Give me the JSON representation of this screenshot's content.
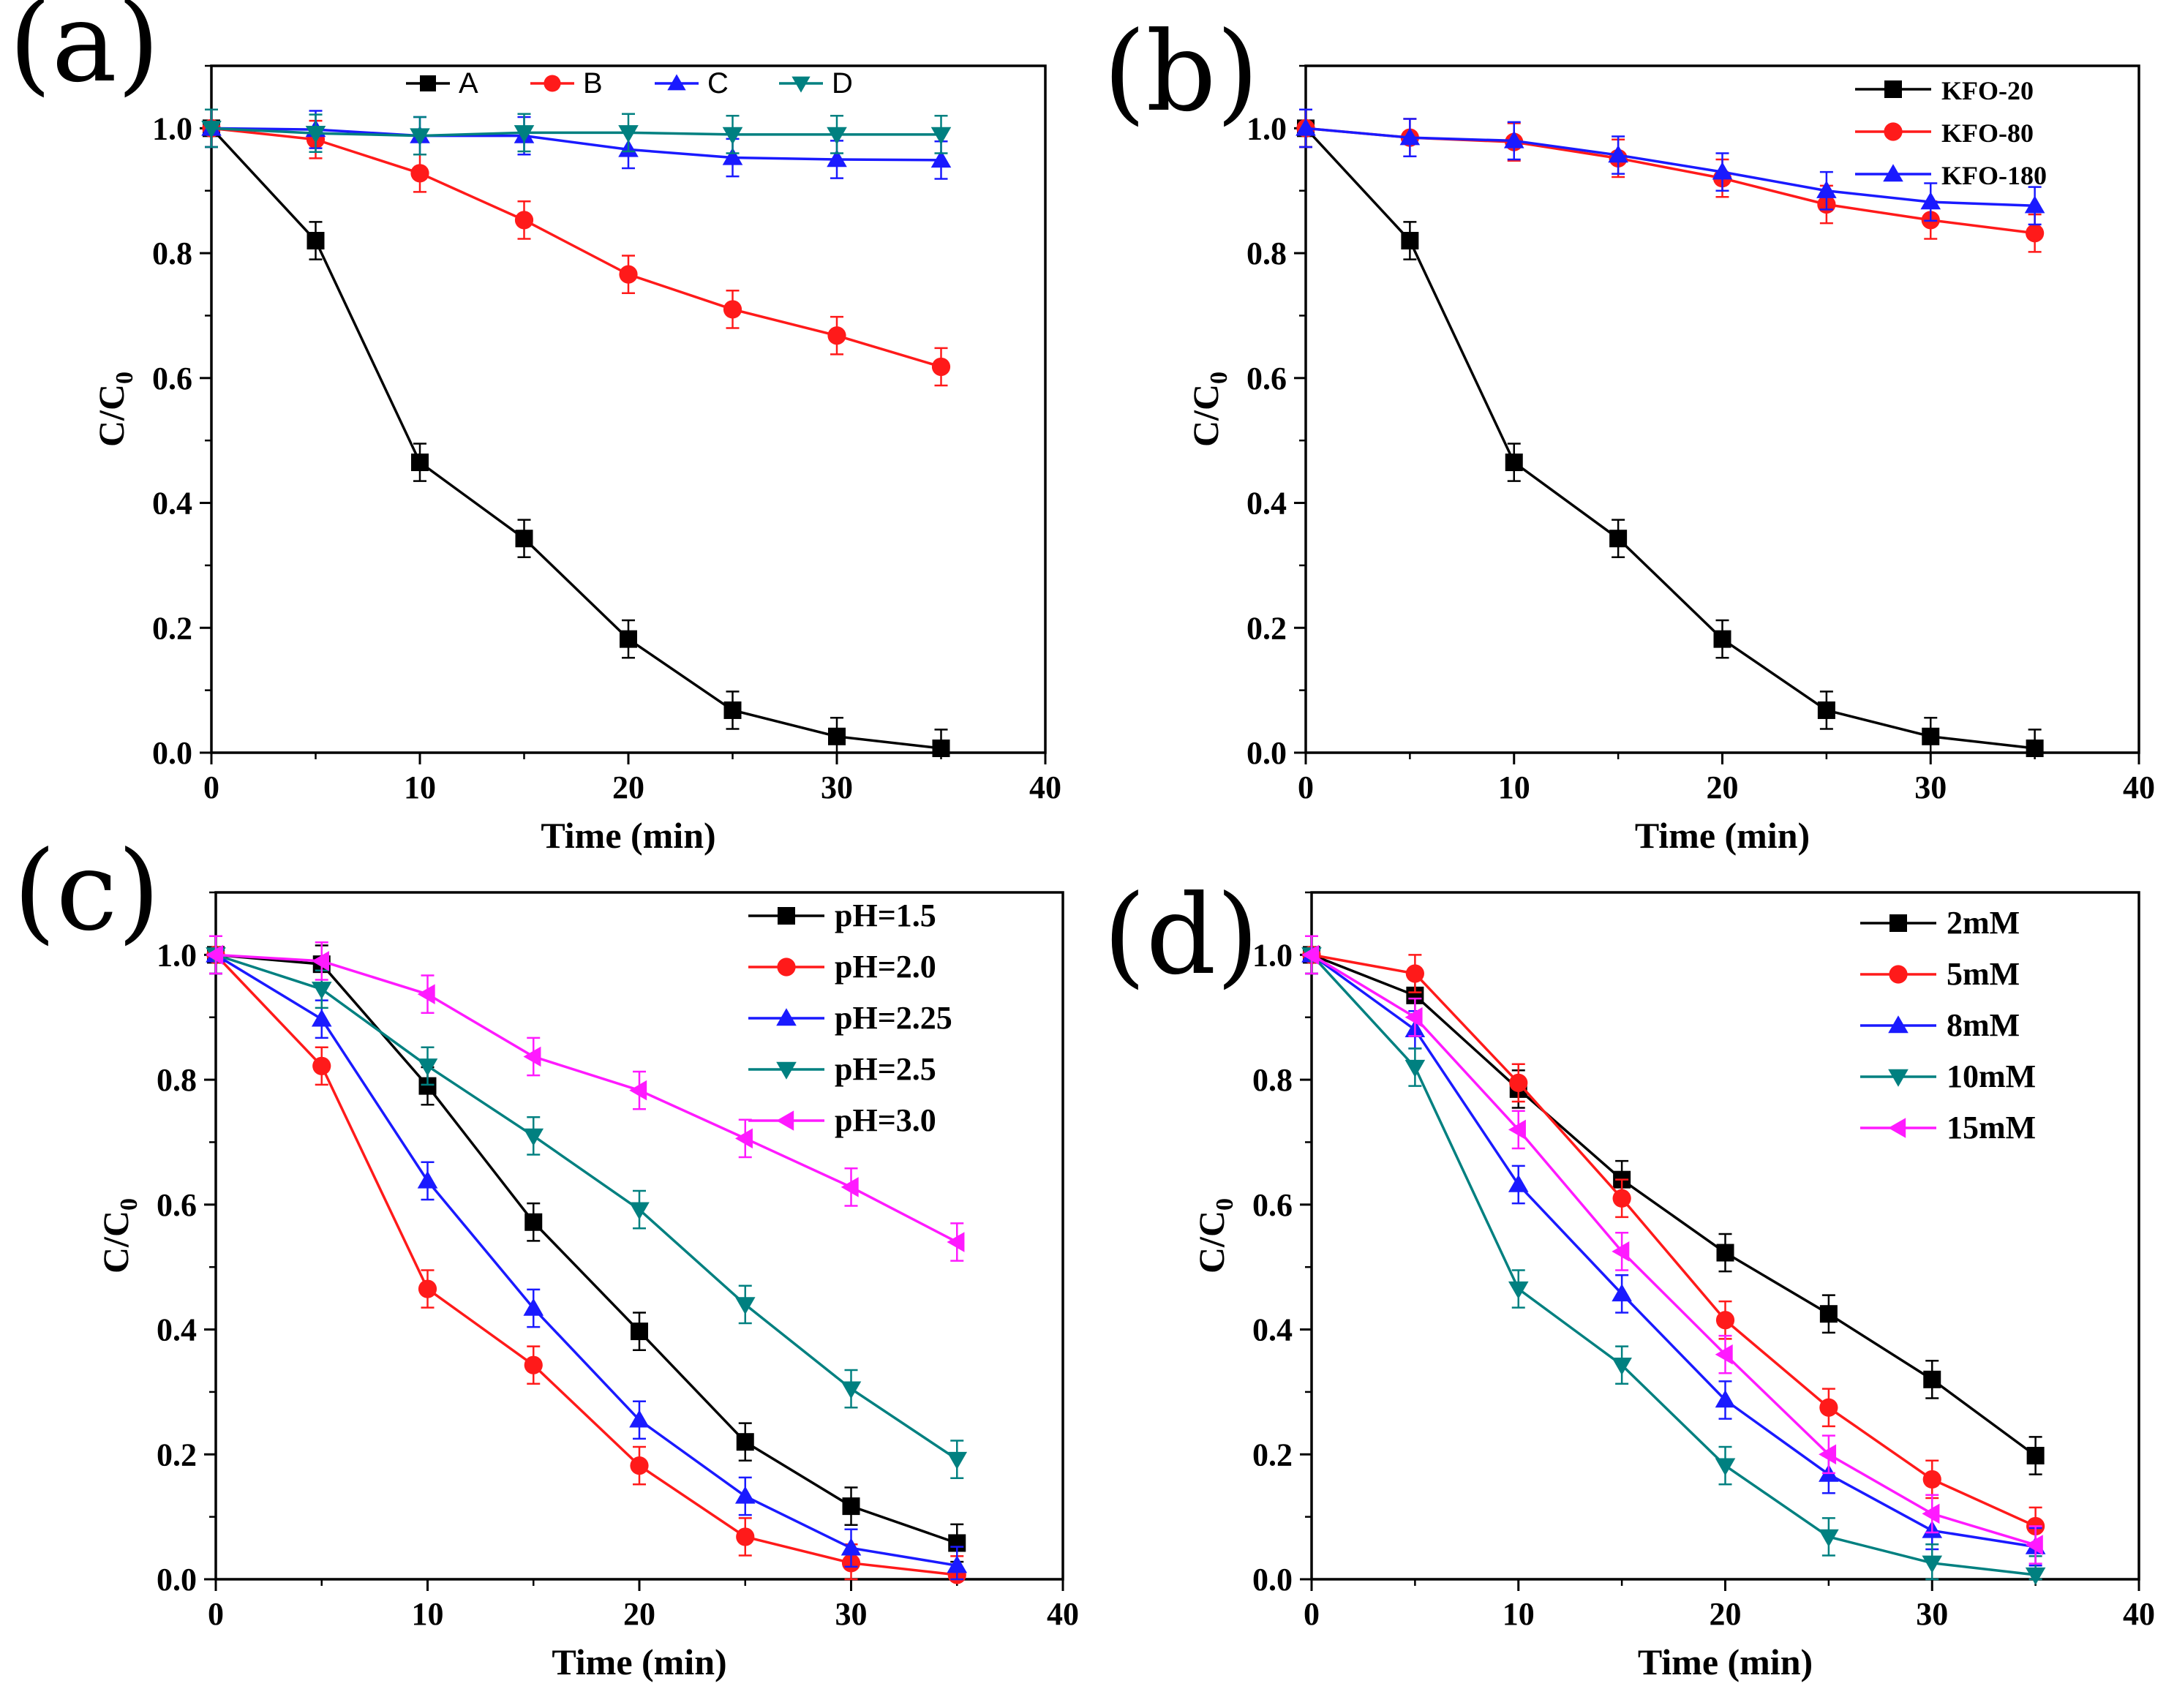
{
  "colors": {
    "black": "#000000",
    "red": "#ff1a1a",
    "blue": "#1a1aff",
    "teal": "#008080",
    "magenta": "#ff1aff"
  },
  "chart_data": [
    {
      "panel": "(a)",
      "type": "line",
      "xlabel": "Time (min)",
      "ylabel": "C/C0",
      "xlim": [
        0,
        40
      ],
      "ylim": [
        0,
        1.1
      ],
      "xticks": [
        0,
        10,
        20,
        30,
        40
      ],
      "yticks": [
        0.0,
        0.2,
        0.4,
        0.6,
        0.8,
        1.0
      ],
      "legend": "top-center",
      "error_bars": true,
      "series": [
        {
          "name": "A",
          "marker": "square",
          "color": "#000000",
          "x": [
            0,
            5,
            10,
            15,
            20,
            25,
            30,
            35
          ],
          "y": [
            1.0,
            0.82,
            0.465,
            0.343,
            0.182,
            0.068,
            0.026,
            0.007
          ]
        },
        {
          "name": "B",
          "marker": "circle",
          "color": "#ff1a1a",
          "x": [
            0,
            5,
            10,
            15,
            20,
            25,
            30,
            35
          ],
          "y": [
            1.0,
            0.982,
            0.928,
            0.853,
            0.766,
            0.71,
            0.668,
            0.618
          ]
        },
        {
          "name": "C",
          "marker": "triangle-up",
          "color": "#1a1aff",
          "x": [
            0,
            5,
            10,
            15,
            20,
            25,
            30,
            35
          ],
          "y": [
            1.0,
            0.998,
            0.988,
            0.988,
            0.966,
            0.953,
            0.95,
            0.949
          ]
        },
        {
          "name": "D",
          "marker": "triangle-down",
          "color": "#008080",
          "x": [
            0,
            5,
            10,
            15,
            20,
            25,
            30,
            35
          ],
          "y": [
            1.0,
            0.992,
            0.988,
            0.993,
            0.993,
            0.99,
            0.99,
            0.99
          ]
        }
      ]
    },
    {
      "panel": "(b)",
      "type": "line",
      "xlabel": "Time (min)",
      "ylabel": "C/C0",
      "xlim": [
        0,
        40
      ],
      "ylim": [
        0,
        1.1
      ],
      "xticks": [
        0,
        10,
        20,
        30,
        40
      ],
      "yticks": [
        0.0,
        0.2,
        0.4,
        0.6,
        0.8,
        1.0
      ],
      "legend": "top-right",
      "error_bars": true,
      "series": [
        {
          "name": "KFO-20",
          "marker": "square",
          "color": "#000000",
          "x": [
            0,
            5,
            10,
            15,
            20,
            25,
            30,
            35
          ],
          "y": [
            1.0,
            0.82,
            0.465,
            0.343,
            0.182,
            0.068,
            0.026,
            0.007
          ]
        },
        {
          "name": "KFO-80",
          "marker": "circle",
          "color": "#ff1a1a",
          "x": [
            0,
            5,
            10,
            15,
            20,
            25,
            30,
            35
          ],
          "y": [
            1.0,
            0.985,
            0.978,
            0.952,
            0.92,
            0.878,
            0.853,
            0.832
          ]
        },
        {
          "name": "KFO-180",
          "marker": "triangle-up",
          "color": "#1a1aff",
          "x": [
            0,
            5,
            10,
            15,
            20,
            25,
            30,
            35
          ],
          "y": [
            1.0,
            0.985,
            0.98,
            0.957,
            0.93,
            0.9,
            0.882,
            0.876
          ]
        }
      ]
    },
    {
      "panel": "(c)",
      "type": "line",
      "xlabel": "Time (min)",
      "ylabel": "C/C0",
      "xlim": [
        0,
        40
      ],
      "ylim": [
        0,
        1.1
      ],
      "xticks": [
        0,
        10,
        20,
        30,
        40
      ],
      "yticks": [
        0.0,
        0.2,
        0.4,
        0.6,
        0.8,
        1.0
      ],
      "legend": "top-right",
      "error_bars": true,
      "series": [
        {
          "name": "pH=1.5",
          "marker": "square",
          "color": "#000000",
          "x": [
            0,
            5,
            10,
            15,
            20,
            25,
            30,
            35
          ],
          "y": [
            1.0,
            0.985,
            0.79,
            0.572,
            0.397,
            0.22,
            0.117,
            0.058
          ]
        },
        {
          "name": "pH=2.0",
          "marker": "circle",
          "color": "#ff1a1a",
          "x": [
            0,
            5,
            10,
            15,
            20,
            25,
            30,
            35
          ],
          "y": [
            1.0,
            0.822,
            0.465,
            0.343,
            0.182,
            0.068,
            0.026,
            0.007
          ]
        },
        {
          "name": "pH=2.25",
          "marker": "triangle-up",
          "color": "#1a1aff",
          "x": [
            0,
            5,
            10,
            15,
            20,
            25,
            30,
            35
          ],
          "y": [
            1.0,
            0.897,
            0.638,
            0.434,
            0.255,
            0.133,
            0.05,
            0.022
          ]
        },
        {
          "name": "pH=2.5",
          "marker": "triangle-down",
          "color": "#008080",
          "x": [
            0,
            5,
            10,
            15,
            20,
            25,
            30,
            35
          ],
          "y": [
            1.0,
            0.945,
            0.822,
            0.71,
            0.592,
            0.44,
            0.305,
            0.192
          ]
        },
        {
          "name": "pH=3.0",
          "marker": "triangle-left",
          "color": "#ff1aff",
          "x": [
            0,
            5,
            10,
            15,
            20,
            25,
            30,
            35
          ],
          "y": [
            1.0,
            0.99,
            0.937,
            0.837,
            0.783,
            0.706,
            0.628,
            0.54
          ]
        }
      ]
    },
    {
      "panel": "(d)",
      "type": "line",
      "xlabel": "Time (min)",
      "ylabel": "C/C0",
      "xlim": [
        0,
        40
      ],
      "ylim": [
        0,
        1.1
      ],
      "xticks": [
        0,
        10,
        20,
        30,
        40
      ],
      "yticks": [
        0.0,
        0.2,
        0.4,
        0.6,
        0.8,
        1.0
      ],
      "legend": "top-right",
      "error_bars": true,
      "series": [
        {
          "name": "2mM",
          "marker": "square",
          "color": "#000000",
          "x": [
            0,
            5,
            10,
            15,
            20,
            25,
            30,
            35
          ],
          "y": [
            1.0,
            0.935,
            0.785,
            0.64,
            0.523,
            0.425,
            0.32,
            0.198
          ]
        },
        {
          "name": "5mM",
          "marker": "circle",
          "color": "#ff1a1a",
          "x": [
            0,
            5,
            10,
            15,
            20,
            25,
            30,
            35
          ],
          "y": [
            1.0,
            0.97,
            0.795,
            0.61,
            0.415,
            0.275,
            0.16,
            0.085
          ]
        },
        {
          "name": "8mM",
          "marker": "triangle-up",
          "color": "#1a1aff",
          "x": [
            0,
            5,
            10,
            15,
            20,
            25,
            30,
            35
          ],
          "y": [
            1.0,
            0.88,
            0.632,
            0.457,
            0.287,
            0.168,
            0.078,
            0.052
          ]
        },
        {
          "name": "10mM",
          "marker": "triangle-down",
          "color": "#008080",
          "x": [
            0,
            5,
            10,
            15,
            20,
            25,
            30,
            35
          ],
          "y": [
            1.0,
            0.82,
            0.465,
            0.343,
            0.182,
            0.068,
            0.026,
            0.007
          ]
        },
        {
          "name": "15mM",
          "marker": "triangle-left",
          "color": "#ff1aff",
          "x": [
            0,
            5,
            10,
            15,
            20,
            25,
            30,
            35
          ],
          "y": [
            1.0,
            0.9,
            0.72,
            0.525,
            0.36,
            0.2,
            0.105,
            0.055
          ]
        }
      ]
    }
  ]
}
